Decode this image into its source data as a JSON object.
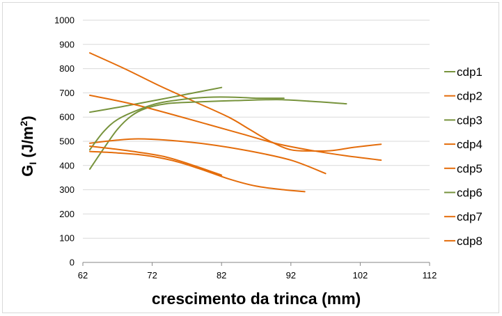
{
  "chart_data": {
    "type": "line",
    "title": "",
    "xlabel": "crescimento da trinca (mm)",
    "ylabel_main": "G",
    "ylabel_sub": "I",
    "ylabel_rest": " (J/m",
    "ylabel_sup": "2",
    "ylabel_end": ")",
    "xlim": [
      62,
      112
    ],
    "ylim": [
      0,
      1000
    ],
    "xticks": [
      62,
      72,
      82,
      92,
      102,
      112
    ],
    "yticks": [
      0,
      100,
      200,
      300,
      400,
      500,
      600,
      700,
      800,
      900,
      1000
    ],
    "grid": "horizontal",
    "legend_position": "right",
    "colors": {
      "green": "#77933c",
      "orange": "#e46c0a"
    },
    "series": [
      {
        "name": "cdp1",
        "color": "green",
        "points": [
          [
            63,
            620
          ],
          [
            68,
            645
          ],
          [
            73,
            672
          ],
          [
            78,
            700
          ],
          [
            82,
            722
          ]
        ]
      },
      {
        "name": "cdp2",
        "color": "orange",
        "points": [
          [
            63,
            865
          ],
          [
            68,
            800
          ],
          [
            73,
            730
          ],
          [
            78,
            665
          ],
          [
            83,
            600
          ],
          [
            86,
            550
          ],
          [
            89,
            500
          ],
          [
            92,
            465
          ],
          [
            95,
            460
          ],
          [
            98,
            462
          ],
          [
            101,
            475
          ],
          [
            105,
            488
          ]
        ]
      },
      {
        "name": "cdp3",
        "color": "green",
        "points": [
          [
            63,
            385
          ],
          [
            65,
            470
          ],
          [
            67,
            550
          ],
          [
            69,
            605
          ],
          [
            71,
            635
          ],
          [
            74,
            655
          ],
          [
            78,
            662
          ],
          [
            84,
            668
          ],
          [
            90,
            672
          ],
          [
            95,
            665
          ],
          [
            100,
            655
          ]
        ]
      },
      {
        "name": "cdp4",
        "color": "orange",
        "points": [
          [
            63,
            690
          ],
          [
            70,
            648
          ],
          [
            80,
            570
          ],
          [
            85,
            530
          ],
          [
            90,
            490
          ],
          [
            95,
            462
          ],
          [
            100,
            440
          ],
          [
            105,
            422
          ]
        ]
      },
      {
        "name": "cdp5",
        "color": "orange",
        "points": [
          [
            63,
            492
          ],
          [
            67,
            505
          ],
          [
            70,
            510
          ],
          [
            74,
            505
          ],
          [
            80,
            488
          ],
          [
            86,
            460
          ],
          [
            92,
            422
          ],
          [
            97,
            367
          ]
        ]
      },
      {
        "name": "cdp6",
        "color": "green",
        "points": [
          [
            63,
            465
          ],
          [
            65,
            540
          ],
          [
            67,
            590
          ],
          [
            70,
            630
          ],
          [
            73,
            658
          ],
          [
            77,
            675
          ],
          [
            80,
            682
          ],
          [
            84,
            682
          ],
          [
            87,
            678
          ],
          [
            91,
            678
          ]
        ]
      },
      {
        "name": "cdp7",
        "color": "orange",
        "points": [
          [
            63,
            480
          ],
          [
            66,
            470
          ],
          [
            70,
            455
          ],
          [
            74,
            435
          ],
          [
            78,
            400
          ],
          [
            82,
            360
          ]
        ]
      },
      {
        "name": "cdp8",
        "color": "orange",
        "points": [
          [
            63,
            458
          ],
          [
            67,
            452
          ],
          [
            71,
            442
          ],
          [
            75,
            420
          ],
          [
            79,
            385
          ],
          [
            83,
            345
          ],
          [
            87,
            315
          ],
          [
            91,
            300
          ],
          [
            94,
            292
          ]
        ]
      }
    ]
  }
}
